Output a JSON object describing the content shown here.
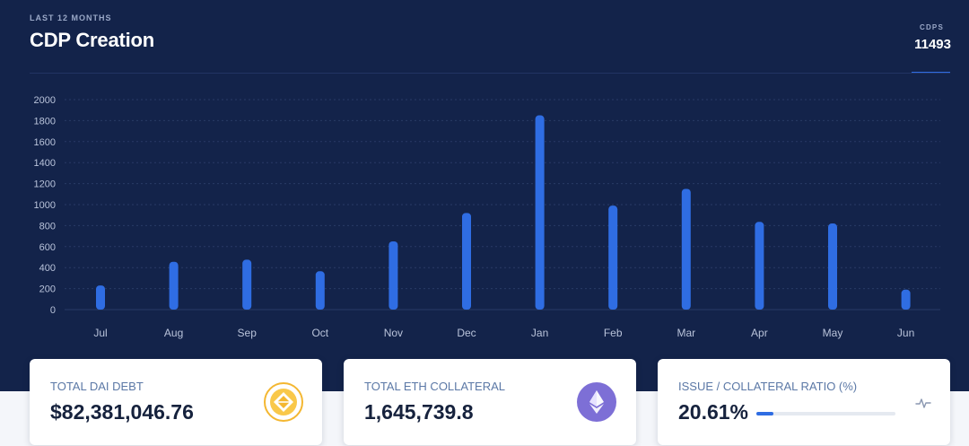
{
  "header": {
    "eyebrow": "LAST 12 MONTHS",
    "title": "CDP Creation",
    "stat_label": "CDPS",
    "stat_value": "11493"
  },
  "colors": {
    "background": "#13234a",
    "bar": "#2f6de3",
    "grid": "#2a3b66",
    "axis_text": "#b9c3da"
  },
  "chart_data": {
    "type": "bar",
    "title": "",
    "xlabel": "",
    "ylabel": "",
    "ylim": [
      0,
      2000
    ],
    "yticks": [
      0,
      200,
      400,
      600,
      800,
      1000,
      1200,
      1400,
      1600,
      1800,
      2000
    ],
    "grid": true,
    "categories": [
      "Jul",
      "Aug",
      "Sep",
      "Oct",
      "Nov",
      "Dec",
      "Jan",
      "Feb",
      "Mar",
      "Apr",
      "May",
      "Jun"
    ],
    "values": [
      230,
      455,
      475,
      365,
      650,
      920,
      1850,
      990,
      1150,
      835,
      820,
      190
    ]
  },
  "cards": [
    {
      "label": "TOTAL DAI DEBT",
      "value": "$82,381,046.76",
      "icon": "dai-coin-icon"
    },
    {
      "label": "TOTAL ETH COLLATERAL",
      "value": "1,645,739.8",
      "icon": "eth-coin-icon"
    },
    {
      "label": "ISSUE / COLLATERAL RATIO (%)",
      "value": "20.61%",
      "progress_percent": 20.61,
      "icon": "pulse-icon"
    }
  ]
}
